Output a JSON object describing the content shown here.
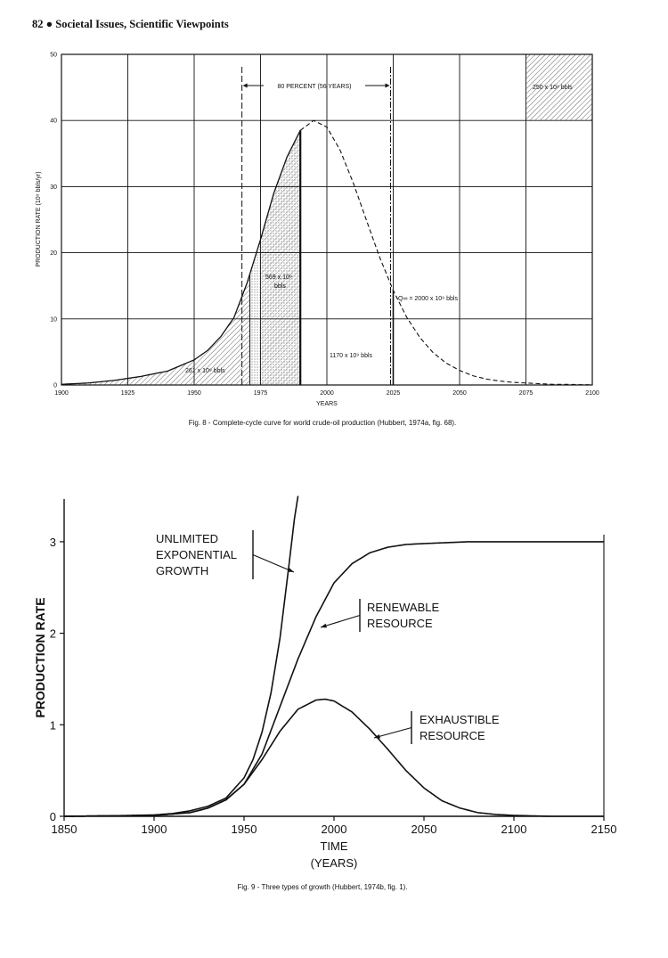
{
  "page_header": "82 ● Societal Issues, Scientific Viewpoints",
  "chart_data": [
    {
      "type": "area",
      "title": "",
      "caption": "Fig. 8 - Complete-cycle curve for world crude-oil production (Hubbert, 1974a, fig. 68).",
      "xlabel": "YEARS",
      "ylabel": "PRODUCTION RATE (10⁹ bbls/yr)",
      "xlim": [
        1900,
        2100
      ],
      "ylim": [
        0,
        50
      ],
      "x_ticks": [
        "1900",
        "1925",
        "1950",
        "1975",
        "2000",
        "2025",
        "2050",
        "2075",
        "2100"
      ],
      "y_ticks": [
        "0",
        "10",
        "20",
        "30",
        "40",
        "50"
      ],
      "grid": true,
      "series": [
        {
          "x": [
            1900,
            1910,
            1920,
            1930,
            1940,
            1950,
            1955,
            1960,
            1965,
            1970,
            1975,
            1980,
            1985,
            1990,
            1995,
            2000,
            2005,
            2010,
            2015,
            2020,
            2025,
            2030,
            2035,
            2040,
            2045,
            2050,
            2055,
            2060,
            2065,
            2070,
            2075,
            2080,
            2085,
            2090,
            2095,
            2100
          ],
          "y": [
            0.1,
            0.3,
            0.7,
            1.3,
            2.1,
            3.8,
            5.2,
            7.3,
            10.2,
            15.5,
            22.0,
            29.0,
            34.5,
            38.5,
            40.0,
            39.0,
            35.5,
            30.5,
            24.8,
            19.2,
            14.3,
            10.3,
            7.2,
            4.9,
            3.3,
            2.2,
            1.4,
            0.9,
            0.6,
            0.4,
            0.3,
            0.2,
            0.1,
            0.1,
            0.05,
            0.03
          ]
        }
      ],
      "annotations": {
        "eighty_percent": "80 PERCENT (56 YEARS)",
        "area_past": "261 x 10⁹ bbls",
        "area_recent_a": "569 x 10⁹",
        "area_recent_b": "bbls",
        "area_future": "1170 x 10⁹ bbls",
        "q_total": "Q∞ = 2000 x 10⁹ bbls",
        "top_right": "250 x 10⁹ bbls"
      },
      "markers": {
        "eighty_percent_start": 1968,
        "eighty_percent_end": 2024,
        "cumulative_split": 1971,
        "history_end": 1990,
        "future_marker": 2025,
        "box_start": 2075
      }
    },
    {
      "type": "line",
      "title": "",
      "caption": "Fig. 9 - Three types of growth (Hubbert, 1974b, fig. 1).",
      "xlabel": "TIME",
      "xlabel2": "(YEARS)",
      "ylabel": "PRODUCTION RATE",
      "xlim": [
        1850,
        2150
      ],
      "ylim": [
        0,
        3.5
      ],
      "x_ticks": [
        "1850",
        "1900",
        "1950",
        "2000",
        "2050",
        "2100",
        "2150"
      ],
      "y_ticks": [
        "0",
        "1",
        "2",
        "3"
      ],
      "series": [
        {
          "name": "UNLIMITED EXPONENTIAL GROWTH",
          "label_lines": [
            "UNLIMITED",
            "EXPONENTIAL",
            "GROWTH"
          ],
          "x": [
            1850,
            1875,
            1900,
            1910,
            1920,
            1930,
            1940,
            1950,
            1955,
            1960,
            1965,
            1970,
            1975,
            1978,
            1980
          ],
          "y": [
            0,
            0.005,
            0.015,
            0.03,
            0.06,
            0.11,
            0.2,
            0.42,
            0.62,
            0.92,
            1.35,
            1.95,
            2.75,
            3.25,
            3.5
          ]
        },
        {
          "name": "RENEWABLE RESOURCE",
          "label_lines": [
            "RENEWABLE",
            "RESOURCE"
          ],
          "x": [
            1850,
            1900,
            1920,
            1930,
            1940,
            1950,
            1960,
            1970,
            1980,
            1990,
            2000,
            2010,
            2020,
            2030,
            2040,
            2050,
            2075,
            2100,
            2150
          ],
          "y": [
            0,
            0.01,
            0.04,
            0.09,
            0.18,
            0.35,
            0.68,
            1.2,
            1.72,
            2.18,
            2.55,
            2.76,
            2.88,
            2.94,
            2.97,
            2.98,
            3.0,
            3.0,
            3.0
          ]
        },
        {
          "name": "EXHAUSTIBLE RESOURCE",
          "label_lines": [
            "EXHAUSTIBLE",
            "RESOURCE"
          ],
          "x": [
            1850,
            1900,
            1920,
            1930,
            1940,
            1950,
            1960,
            1970,
            1980,
            1990,
            1995,
            2000,
            2010,
            2020,
            2030,
            2040,
            2050,
            2060,
            2070,
            2080,
            2090,
            2100,
            2120,
            2150
          ],
          "y": [
            0,
            0.01,
            0.04,
            0.09,
            0.18,
            0.35,
            0.62,
            0.93,
            1.17,
            1.27,
            1.28,
            1.26,
            1.14,
            0.95,
            0.73,
            0.5,
            0.31,
            0.17,
            0.09,
            0.04,
            0.02,
            0.01,
            0,
            0
          ]
        }
      ]
    }
  ]
}
